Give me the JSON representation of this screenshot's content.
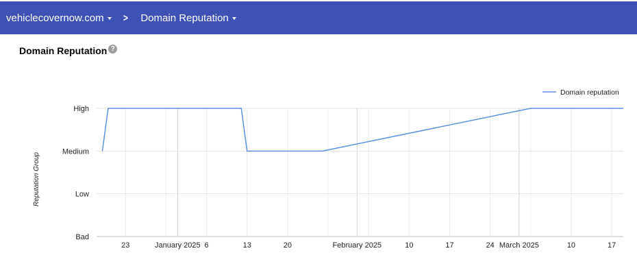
{
  "header": {
    "domain_label": "vehiclecovernow.com",
    "separator": ">",
    "section_label": "Domain Reputation"
  },
  "page": {
    "title": "Domain Reputation",
    "help_glyph": "?"
  },
  "colors": {
    "header_bg": "#3f51b5",
    "series_line": "#5b8fe0"
  },
  "chart_data": {
    "type": "line",
    "ylabel": "Reputation Group",
    "xlabel": "",
    "y_categories": [
      "Bad",
      "Low",
      "Medium",
      "High"
    ],
    "x_range": [
      "2024-12-18",
      "2025-03-19"
    ],
    "x_ticks": [
      {
        "date": "2024-12-23",
        "label": "23"
      },
      {
        "date": "2025-01-01",
        "label": "January 2025"
      },
      {
        "date": "2025-01-06",
        "label": "6"
      },
      {
        "date": "2025-01-13",
        "label": "13"
      },
      {
        "date": "2025-01-20",
        "label": "20"
      },
      {
        "date": "2025-02-01",
        "label": "February 2025"
      },
      {
        "date": "2025-02-10",
        "label": "10"
      },
      {
        "date": "2025-02-17",
        "label": "17"
      },
      {
        "date": "2025-02-24",
        "label": "24"
      },
      {
        "date": "2025-03-01",
        "label": "March 2025"
      },
      {
        "date": "2025-03-10",
        "label": "10"
      },
      {
        "date": "2025-03-17",
        "label": "17"
      }
    ],
    "month_gridlines": [
      "2025-01-01",
      "2025-02-01",
      "2025-03-01"
    ],
    "legend_position": "top-right",
    "grid": true,
    "series": [
      {
        "name": "Domain reputation",
        "points": [
          {
            "x": "2024-12-19",
            "y": "Medium"
          },
          {
            "x": "2024-12-20",
            "y": "High"
          },
          {
            "x": "2025-01-12",
            "y": "High"
          },
          {
            "x": "2025-01-13",
            "y": "Medium"
          },
          {
            "x": "2025-01-26",
            "y": "Medium"
          },
          {
            "x": "2025-03-03",
            "y": "High"
          },
          {
            "x": "2025-03-19",
            "y": "High"
          }
        ]
      }
    ]
  }
}
